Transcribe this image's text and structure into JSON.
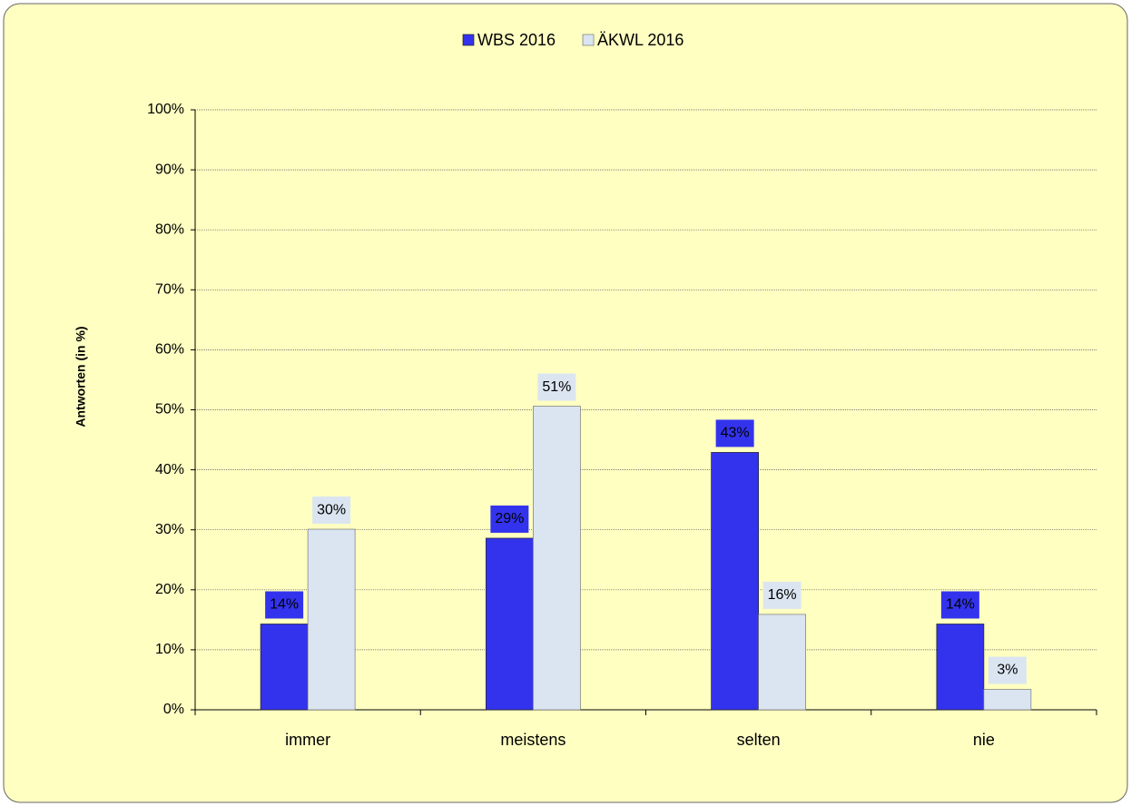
{
  "chart_data": {
    "type": "bar",
    "categories": [
      "immer",
      "meistens",
      "selten",
      "nie"
    ],
    "series": [
      {
        "name": "WBS 2016",
        "color": "#3333ee",
        "values": [
          14.3,
          28.6,
          42.9,
          14.3
        ],
        "value_labels": [
          "14%",
          "29%",
          "43%",
          "14%"
        ]
      },
      {
        "name": "ÄKWL 2016",
        "color": "#dbe5f1",
        "values": [
          30.1,
          50.6,
          15.9,
          3.4
        ],
        "value_labels": [
          "30%",
          "51%",
          "16%",
          "3%"
        ]
      }
    ],
    "y_label": "Antworten (in %)",
    "ylim": [
      0,
      100
    ],
    "yticks": [
      {
        "value": 0,
        "label": "0%"
      },
      {
        "value": 10,
        "label": "10%"
      },
      {
        "value": 20,
        "label": "20%"
      },
      {
        "value": 30,
        "label": "30%"
      },
      {
        "value": 40,
        "label": "40%"
      },
      {
        "value": 50,
        "label": "50%"
      },
      {
        "value": 60,
        "label": "60%"
      },
      {
        "value": 70,
        "label": "70%"
      },
      {
        "value": 80,
        "label": "80%"
      },
      {
        "value": 90,
        "label": "90%"
      },
      {
        "value": 100,
        "label": "100%"
      }
    ],
    "grid": true,
    "legend": "top"
  }
}
